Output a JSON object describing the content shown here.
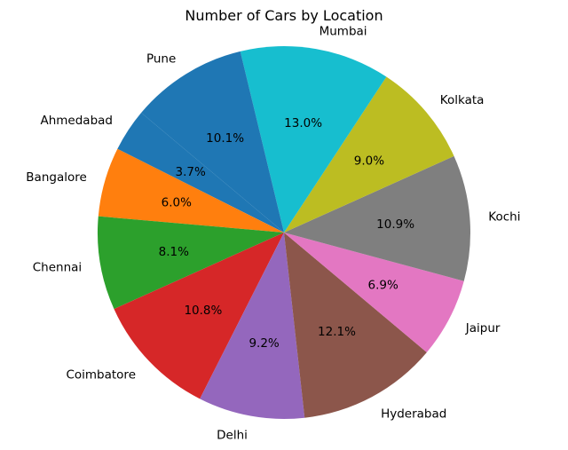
{
  "chart_data": {
    "type": "pie",
    "title": "Number of Cars by Location",
    "categories": [
      "Ahmedabad",
      "Bangalore",
      "Chennai",
      "Coimbatore",
      "Delhi",
      "Hyderabad",
      "Jaipur",
      "Kochi",
      "Kolkata",
      "Mumbai",
      "Pune"
    ],
    "values": [
      3.7,
      6.0,
      8.1,
      10.8,
      9.2,
      12.1,
      6.9,
      10.9,
      9.0,
      13.0,
      10.1
    ],
    "percent_labels": [
      "3.7%",
      "6.0%",
      "8.1%",
      "10.8%",
      "9.2%",
      "12.1%",
      "6.9%",
      "10.9%",
      "9.0%",
      "13.0%",
      "10.1%"
    ],
    "colors": [
      "#1f77b4",
      "#ff7f0e",
      "#2ca02c",
      "#d62728",
      "#9467bd",
      "#8c564b",
      "#e377c2",
      "#7f7f7f",
      "#bcbd22",
      "#17becf",
      "#1f77b4"
    ],
    "start_angle_deg": 140,
    "direction": "counterclockwise",
    "legend": "none"
  }
}
